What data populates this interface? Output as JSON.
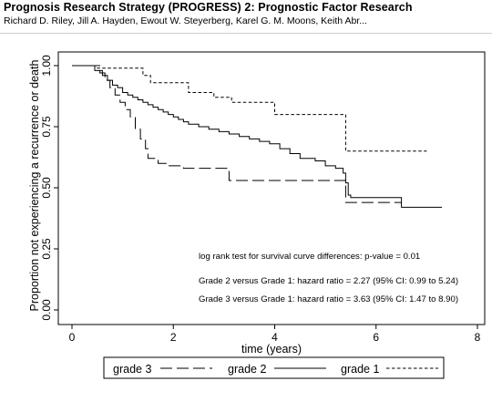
{
  "header": {
    "title": "Prognosis Research Strategy (PROGRESS) 2: Prognostic Factor Research",
    "authors": "Richard D. Riley, Jill A. Hayden, Ewout W. Steyerberg, Karel G. M. Moons, Keith Abr..."
  },
  "chart_data": {
    "type": "line",
    "subtype": "kaplan-meier step",
    "xlabel": "time (years)",
    "ylabel": "Proportion not experiencing a recurrence or death",
    "xlim": [
      0,
      8
    ],
    "ylim": [
      0,
      1
    ],
    "xticks": [
      "0",
      "2",
      "4",
      "6",
      "8"
    ],
    "yticks": [
      "0.00",
      "0.25",
      "0.50",
      "0.75",
      "1.00"
    ],
    "grid": false,
    "legend_position": "bottom",
    "series": [
      {
        "name": "grade 3",
        "line_style": "long-dash",
        "points": [
          [
            0,
            1.0
          ],
          [
            0.5,
            1.0
          ],
          [
            0.55,
            0.97
          ],
          [
            0.65,
            0.94
          ],
          [
            0.75,
            0.91
          ],
          [
            0.85,
            0.88
          ],
          [
            0.95,
            0.85
          ],
          [
            1.05,
            0.82
          ],
          [
            1.15,
            0.79
          ],
          [
            1.25,
            0.74
          ],
          [
            1.35,
            0.7
          ],
          [
            1.45,
            0.66
          ],
          [
            1.5,
            0.62
          ],
          [
            1.7,
            0.6
          ],
          [
            1.9,
            0.59
          ],
          [
            2.2,
            0.58
          ],
          [
            3.1,
            0.53
          ],
          [
            5.4,
            0.44
          ],
          [
            6.5,
            0.44
          ]
        ]
      },
      {
        "name": "grade 2",
        "line_style": "solid",
        "points": [
          [
            0,
            1.0
          ],
          [
            0.45,
            0.98
          ],
          [
            0.6,
            0.96
          ],
          [
            0.7,
            0.94
          ],
          [
            0.8,
            0.92
          ],
          [
            0.9,
            0.91
          ],
          [
            1.0,
            0.89
          ],
          [
            1.1,
            0.88
          ],
          [
            1.2,
            0.87
          ],
          [
            1.3,
            0.86
          ],
          [
            1.4,
            0.85
          ],
          [
            1.5,
            0.84
          ],
          [
            1.6,
            0.83
          ],
          [
            1.7,
            0.82
          ],
          [
            1.8,
            0.81
          ],
          [
            1.9,
            0.8
          ],
          [
            2.0,
            0.79
          ],
          [
            2.1,
            0.78
          ],
          [
            2.2,
            0.77
          ],
          [
            2.3,
            0.76
          ],
          [
            2.5,
            0.75
          ],
          [
            2.7,
            0.74
          ],
          [
            2.9,
            0.73
          ],
          [
            3.1,
            0.72
          ],
          [
            3.3,
            0.71
          ],
          [
            3.5,
            0.7
          ],
          [
            3.7,
            0.69
          ],
          [
            3.9,
            0.68
          ],
          [
            4.1,
            0.66
          ],
          [
            4.3,
            0.64
          ],
          [
            4.5,
            0.62
          ],
          [
            4.8,
            0.61
          ],
          [
            5.0,
            0.59
          ],
          [
            5.2,
            0.58
          ],
          [
            5.35,
            0.56
          ],
          [
            5.4,
            0.52
          ],
          [
            5.45,
            0.47
          ],
          [
            5.5,
            0.46
          ],
          [
            6.5,
            0.42
          ],
          [
            7.3,
            0.42
          ]
        ]
      },
      {
        "name": "grade 1",
        "line_style": "short-dash",
        "points": [
          [
            0,
            1.0
          ],
          [
            0.5,
            1.0
          ],
          [
            0.5,
            0.99
          ],
          [
            1.4,
            0.96
          ],
          [
            1.55,
            0.93
          ],
          [
            2.3,
            0.89
          ],
          [
            2.8,
            0.87
          ],
          [
            3.15,
            0.85
          ],
          [
            4.0,
            0.8
          ],
          [
            5.4,
            0.8
          ],
          [
            5.4,
            0.65
          ],
          [
            7.0,
            0.65
          ]
        ]
      }
    ],
    "annotations": [
      "log rank test for survival curve differences: p-value = 0.01",
      "Grade 2 versus Grade 1: hazard ratio = 2.27 (95% CI: 0.99 to 5.24)",
      "Grade 3 versus Grade 1: hazard ratio = 3.63 (95% CI: 1.47 to 8.90)"
    ]
  }
}
